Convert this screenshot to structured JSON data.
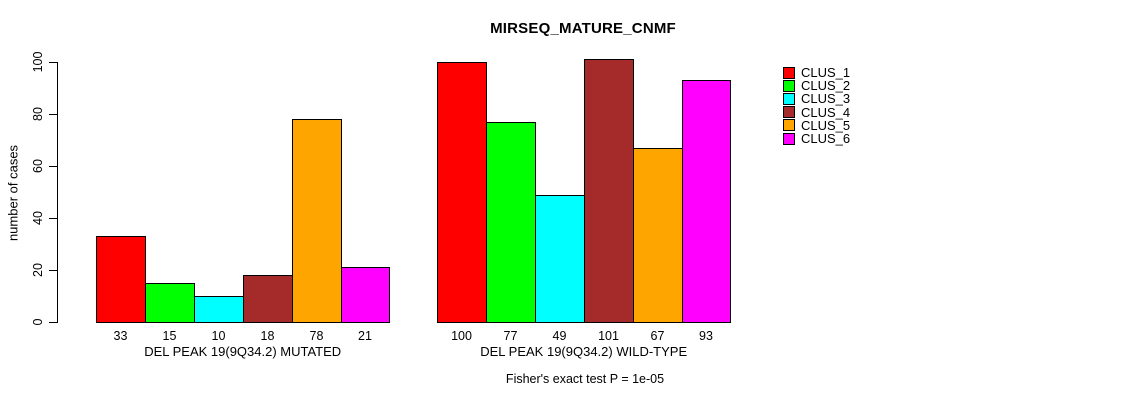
{
  "title": "MIRSEQ_MATURE_CNMF",
  "y_axis": {
    "label": "number of cases",
    "ticks": [
      "0",
      "20",
      "40",
      "60",
      "80",
      "100"
    ]
  },
  "legend": {
    "items": [
      {
        "label": "CLUS_1",
        "color": "#FF0000"
      },
      {
        "label": "CLUS_2",
        "color": "#00FF00"
      },
      {
        "label": "CLUS_3",
        "color": "#00FFFF"
      },
      {
        "label": "CLUS_4",
        "color": "#A52A2A"
      },
      {
        "label": "CLUS_5",
        "color": "#FFA500"
      },
      {
        "label": "CLUS_6",
        "color": "#FF00FF"
      }
    ]
  },
  "chart_data": {
    "type": "bar",
    "title": "MIRSEQ_MATURE_CNMF",
    "xlabel": "",
    "ylabel": "number of cases",
    "ylim": [
      0,
      100
    ],
    "y_ticks": [
      0,
      20,
      40,
      60,
      80,
      100
    ],
    "grid": false,
    "legend_position": "right",
    "series": [
      "CLUS_1",
      "CLUS_2",
      "CLUS_3",
      "CLUS_4",
      "CLUS_5",
      "CLUS_6"
    ],
    "colors": [
      "#FF0000",
      "#00FF00",
      "#00FFFF",
      "#A52A2A",
      "#FFA500",
      "#FF00FF"
    ],
    "groups": [
      {
        "label": "DEL PEAK 19(9Q34.2) MUTATED",
        "values": [
          33,
          15,
          10,
          18,
          78,
          21
        ]
      },
      {
        "label": "DEL PEAK 19(9Q34.2) WILD-TYPE",
        "values": [
          100,
          77,
          49,
          101,
          67,
          93
        ]
      }
    ],
    "bar_value_labels_shown": true,
    "annotation": "Fisher's exact test P = 1e-05"
  }
}
